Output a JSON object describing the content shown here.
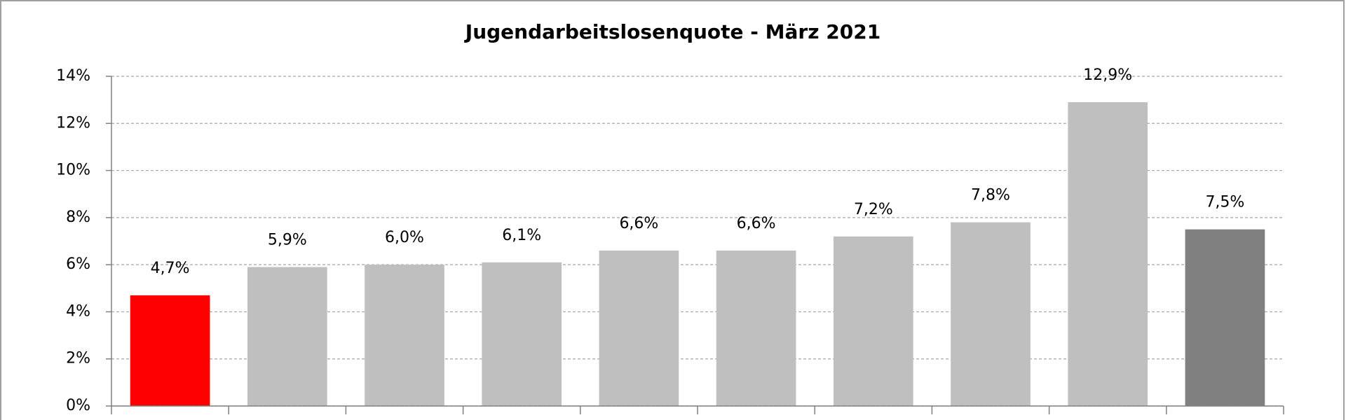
{
  "chart_data": {
    "type": "bar",
    "title": "Jugendarbeitslosenquote - März 2021",
    "categories": [
      null,
      null,
      null,
      null,
      null,
      null,
      null,
      null,
      null,
      null
    ],
    "values": [
      4.7,
      5.9,
      6.0,
      6.1,
      6.6,
      6.6,
      7.2,
      7.8,
      12.9,
      7.5
    ],
    "value_labels": [
      "4,7%",
      "5,9%",
      "6,0%",
      "6,1%",
      "6,6%",
      "6,6%",
      "7,2%",
      "7,8%",
      "12,9%",
      "7,5%"
    ],
    "colors": [
      "#ff0000",
      "#bfbfbf",
      "#bfbfbf",
      "#bfbfbf",
      "#bfbfbf",
      "#bfbfbf",
      "#bfbfbf",
      "#bfbfbf",
      "#bfbfbf",
      "#808080"
    ],
    "ylim": [
      0,
      14
    ],
    "yticks": [
      {
        "value": 0,
        "label": "0%"
      },
      {
        "value": 2,
        "label": "2%"
      },
      {
        "value": 4,
        "label": "4%"
      },
      {
        "value": 6,
        "label": "6%"
      },
      {
        "value": 8,
        "label": "8%"
      },
      {
        "value": 10,
        "label": "10%"
      },
      {
        "value": 12,
        "label": "12%"
      },
      {
        "value": 14,
        "label": "14%"
      }
    ],
    "grid": true
  }
}
